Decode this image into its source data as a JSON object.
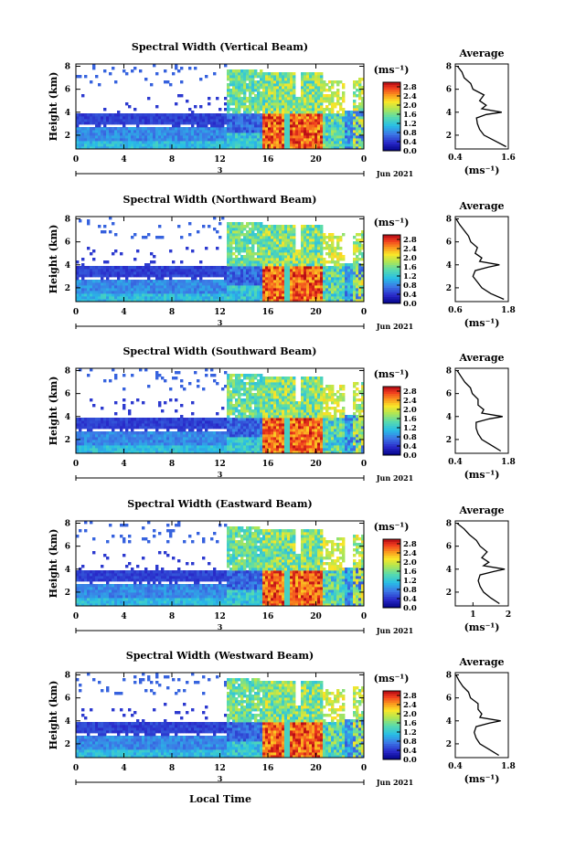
{
  "chart_data": {
    "type": "heatmap",
    "x_axis": {
      "ticks": [
        "0",
        "4",
        "8",
        "12",
        "16",
        "20",
        "0"
      ],
      "date_label": "3",
      "month_label": "Jun 2021",
      "xlabel": "Local Time"
    },
    "y_axis": {
      "label": "Height (km)",
      "ticks": [
        "2",
        "4",
        "6",
        "8"
      ],
      "range_km": [
        0.8,
        8.2
      ]
    },
    "colorbar": {
      "unit": "(ms⁻¹)",
      "ticks": [
        "0.0",
        "0.4",
        "0.8",
        "1.2",
        "1.6",
        "2.0",
        "2.4",
        "2.8"
      ],
      "range": [
        0.0,
        3.0
      ]
    },
    "profile": {
      "title": "Average",
      "xlabel": "(ms⁻¹)"
    },
    "panels": [
      {
        "title": "Spectral Width (Vertical Beam)",
        "profile_ticks": [
          "0.4",
          "1.6"
        ],
        "profile_range": [
          0.4,
          1.6
        ],
        "profile_heights": [
          1.0,
          1.5,
          2.0,
          2.5,
          3.0,
          3.5,
          3.8,
          4.0,
          4.3,
          4.6,
          5.0,
          5.5,
          6.0,
          6.5,
          7.0,
          7.5,
          8.0
        ],
        "profile_values": [
          1.55,
          1.3,
          1.05,
          0.95,
          0.9,
          0.88,
          1.1,
          1.45,
          1.0,
          1.1,
          0.95,
          1.05,
          0.8,
          0.75,
          0.6,
          0.55,
          0.45
        ]
      },
      {
        "title": "Spectral Width (Northward Beam)",
        "profile_ticks": [
          "0.6",
          "1.8"
        ],
        "profile_range": [
          0.6,
          1.8
        ],
        "profile_heights": [
          1.0,
          1.5,
          2.0,
          2.5,
          3.0,
          3.5,
          3.8,
          4.0,
          4.3,
          4.6,
          5.0,
          5.5,
          6.0,
          6.5,
          7.0,
          7.5,
          8.0
        ],
        "profile_values": [
          1.7,
          1.4,
          1.2,
          1.1,
          1.0,
          1.05,
          1.35,
          1.6,
          1.15,
          1.2,
          1.05,
          1.1,
          0.95,
          0.9,
          0.8,
          0.7,
          0.62
        ]
      },
      {
        "title": "Spectral Width (Southward Beam)",
        "profile_ticks": [
          "0.4",
          "1.8"
        ],
        "profile_range": [
          0.4,
          1.8
        ],
        "profile_heights": [
          1.0,
          1.5,
          2.0,
          2.5,
          3.0,
          3.5,
          3.8,
          4.0,
          4.3,
          4.6,
          5.0,
          5.5,
          6.0,
          6.5,
          7.0,
          7.5,
          8.0
        ],
        "profile_values": [
          1.6,
          1.35,
          1.1,
          1.0,
          0.95,
          0.95,
          1.3,
          1.65,
          1.1,
          1.15,
          1.0,
          1.0,
          0.85,
          0.8,
          0.65,
          0.55,
          0.45
        ]
      },
      {
        "title": "Spectral Width (Eastward Beam)",
        "profile_ticks": [
          "1",
          "2"
        ],
        "profile_range": [
          0.5,
          2.0
        ],
        "profile_heights": [
          1.0,
          1.5,
          2.0,
          2.5,
          3.0,
          3.5,
          3.8,
          4.0,
          4.3,
          4.6,
          5.0,
          5.5,
          6.0,
          6.5,
          7.0,
          7.5,
          8.0
        ],
        "profile_values": [
          1.75,
          1.5,
          1.3,
          1.2,
          1.15,
          1.2,
          1.6,
          1.9,
          1.3,
          1.45,
          1.25,
          1.4,
          1.2,
          1.1,
          0.9,
          0.75,
          0.55
        ]
      },
      {
        "title": "Spectral Width (Westward Beam)",
        "profile_ticks": [
          "0.4",
          "1.8"
        ],
        "profile_range": [
          0.4,
          1.8
        ],
        "profile_heights": [
          1.0,
          1.5,
          2.0,
          2.5,
          3.0,
          3.5,
          3.8,
          4.0,
          4.3,
          4.6,
          5.0,
          5.5,
          6.0,
          6.5,
          7.0,
          7.5,
          8.0
        ],
        "profile_values": [
          1.55,
          1.3,
          1.05,
          0.95,
          0.9,
          0.95,
          1.3,
          1.6,
          1.05,
          1.1,
          1.0,
          1.0,
          0.8,
          0.75,
          0.6,
          0.5,
          0.42
        ]
      }
    ]
  }
}
